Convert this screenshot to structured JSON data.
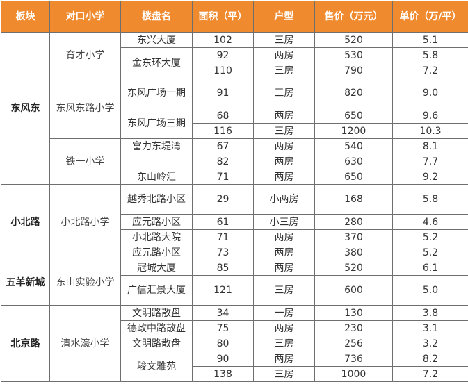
{
  "headers": [
    "板块",
    "对口小学",
    "楼盘名",
    "面积（平）",
    "户型",
    "售价（万元）",
    "单价（万/平）"
  ],
  "rows": [
    {
      "area": "102",
      "type": "三房",
      "price": "520",
      "unit": "5.1"
    },
    {
      "area": "92",
      "type": "两房",
      "price": "530",
      "unit": "5.8"
    },
    {
      "area": "110",
      "type": "三房",
      "price": "790",
      "unit": "7.2"
    },
    {
      "area": "91",
      "type": "三房",
      "price": "820",
      "unit": "9.0"
    },
    {
      "area": "68",
      "type": "两房",
      "price": "650",
      "unit": "9.6"
    },
    {
      "area": "116",
      "type": "三房",
      "price": "1200",
      "unit": "10.3"
    },
    {
      "area": "67",
      "type": "两房",
      "price": "540",
      "unit": "8.1"
    },
    {
      "area": "82",
      "type": "两房",
      "price": "630",
      "unit": "7.7"
    },
    {
      "area": "71",
      "type": "两房",
      "price": "650",
      "unit": "9.2"
    },
    {
      "area": "29",
      "type": "小两房",
      "price": "168",
      "unit": "5.8"
    },
    {
      "area": "61",
      "type": "小三房",
      "price": "280",
      "unit": "4.6"
    },
    {
      "area": "71",
      "type": "两房",
      "price": "370",
      "unit": "5.2"
    },
    {
      "area": "73",
      "type": "两房",
      "price": "380",
      "unit": "5.2"
    },
    {
      "area": "85",
      "type": "两房",
      "price": "520",
      "unit": "6.1"
    },
    {
      "area": "121",
      "type": "三房",
      "price": "600",
      "unit": "5.0"
    },
    {
      "area": "34",
      "type": "一房",
      "price": "130",
      "unit": "3.8"
    },
    {
      "area": "75",
      "type": "两房",
      "price": "230",
      "unit": "3.1"
    },
    {
      "area": "80",
      "type": "三房",
      "price": "256",
      "unit": "3.2"
    },
    {
      "area": "90",
      "type": "两房",
      "price": "736",
      "unit": "8.2"
    },
    {
      "area": "138",
      "type": "三房",
      "price": "1000",
      "unit": "7.2"
    }
  ],
  "districts": [
    {
      "name": "东风东",
      "start": 0,
      "span": 9
    },
    {
      "name": "小北路",
      "start": 9,
      "span": 4
    },
    {
      "name": "五羊新城",
      "start": 13,
      "span": 2
    },
    {
      "name": "北京路",
      "start": 15,
      "span": 5
    }
  ],
  "schools": [
    {
      "name": "育才小学",
      "start": 0,
      "span": 3
    },
    {
      "name": "东风东路小学",
      "start": 3,
      "span": 3
    },
    {
      "name": "铁一小学",
      "start": 6,
      "span": 3
    },
    {
      "name": "小北路小学",
      "start": 9,
      "span": 4
    },
    {
      "name": "东山实验小学",
      "start": 13,
      "span": 2
    },
    {
      "name": "清水濠小学",
      "start": 15,
      "span": 5
    }
  ],
  "estates": [
    {
      "name": "东兴大厦",
      "start": 0,
      "span": 1
    },
    {
      "name": "金东环大厦",
      "start": 1,
      "span": 2
    },
    {
      "name": "东风广场一期",
      "start": 3,
      "span": 1
    },
    {
      "name": "东风广场三期",
      "start": 4,
      "span": 2
    },
    {
      "name": "富力东堤湾",
      "start": 6,
      "span": 1
    },
    {
      "name": "",
      "start": 7,
      "span": 1
    },
    {
      "name": "东山岭汇",
      "start": 8,
      "span": 1
    },
    {
      "name": "越秀北路小区",
      "start": 9,
      "span": 1
    },
    {
      "name": "应元路小区",
      "start": 10,
      "span": 1
    },
    {
      "name": "小北路大院",
      "start": 11,
      "span": 1
    },
    {
      "name": "应元路小区",
      "start": 12,
      "span": 1
    },
    {
      "name": "冠城大厦",
      "start": 13,
      "span": 1
    },
    {
      "name": "广信汇景大厦",
      "start": 14,
      "span": 1
    },
    {
      "name": "文明路散盘",
      "start": 15,
      "span": 1
    },
    {
      "name": "德政中路散盘",
      "start": 16,
      "span": 1
    },
    {
      "name": "文明路散盘",
      "start": 17,
      "span": 1
    },
    {
      "name": "骏文雅苑",
      "start": 18,
      "span": 2
    }
  ],
  "colors": {
    "header_bg": "#f08a2e",
    "header_text": "#ffffff",
    "border": "#6f6f6f"
  }
}
